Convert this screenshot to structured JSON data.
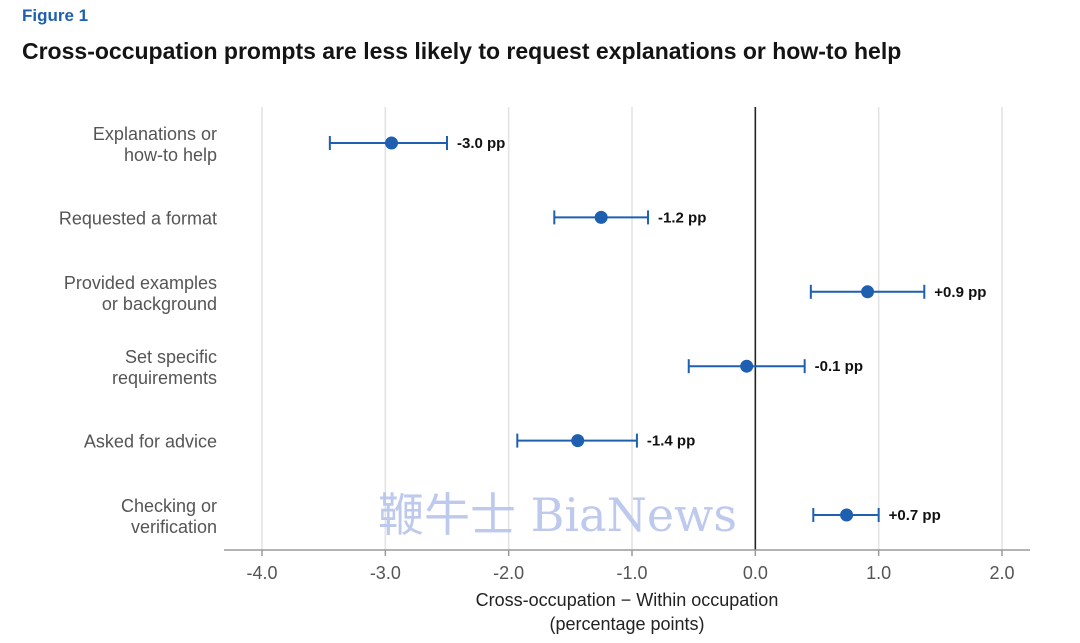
{
  "figure_label": "Figure 1",
  "watermark": "鞭牛士 BiaNews",
  "chart_data": {
    "type": "scatter",
    "title": "Cross-occupation prompts are less likely to request explanations or how-to help",
    "xlabel": [
      "Cross-occupation − Within occupation",
      "(percentage points)"
    ],
    "ylabel": "",
    "xlim": [
      -4.0,
      2.0
    ],
    "xticks": [
      -4.0,
      -3.0,
      -2.0,
      -1.0,
      0.0,
      1.0,
      2.0
    ],
    "xtick_labels": [
      "-4.0",
      "-3.0",
      "-2.0",
      "-1.0",
      "0.0",
      "1.0",
      "2.0"
    ],
    "grid": "vertical",
    "reference_line": 0.0,
    "point_color": "#1f5fb0",
    "categories": [
      {
        "label": [
          "Explanations or",
          "how-to help"
        ],
        "value": -2.95,
        "ci": [
          -3.45,
          -2.5
        ],
        "data_label": "-3.0 pp"
      },
      {
        "label": [
          "Requested a format"
        ],
        "value": -1.25,
        "ci": [
          -1.63,
          -0.87
        ],
        "data_label": "-1.2 pp"
      },
      {
        "label": [
          "Provided examples",
          "or background"
        ],
        "value": 0.91,
        "ci": [
          0.45,
          1.37
        ],
        "data_label": "+0.9 pp"
      },
      {
        "label": [
          "Set specific",
          "requirements"
        ],
        "value": -0.07,
        "ci": [
          -0.54,
          0.4
        ],
        "data_label": "-0.1 pp"
      },
      {
        "label": [
          "Asked for advice"
        ],
        "value": -1.44,
        "ci": [
          -1.93,
          -0.96
        ],
        "data_label": "-1.4 pp"
      },
      {
        "label": [
          "Checking or",
          "verification"
        ],
        "value": 0.74,
        "ci": [
          0.47,
          1.0
        ],
        "data_label": "+0.7 pp"
      }
    ]
  }
}
